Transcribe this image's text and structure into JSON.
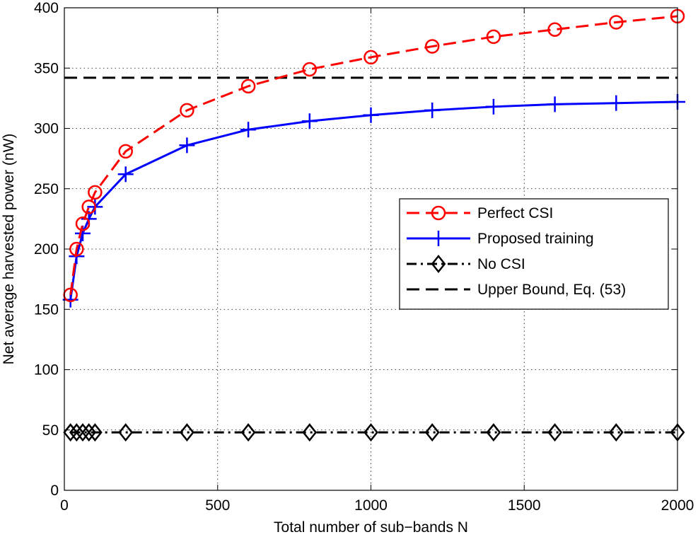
{
  "chart_data": {
    "type": "line",
    "title": "",
    "xlabel": "Total number of sub−bands N",
    "ylabel": "Net average harvested power (nW)",
    "xlim": [
      0,
      2000
    ],
    "ylim": [
      0,
      400
    ],
    "xticks": [
      0,
      500,
      1000,
      1500,
      2000
    ],
    "yticks": [
      0,
      50,
      100,
      150,
      200,
      250,
      300,
      350,
      400
    ],
    "grid": true,
    "legend_position": "center-right",
    "series": [
      {
        "name": "Perfect CSI",
        "color": "#ff0000",
        "line_style": "dashed",
        "marker": "circle",
        "x": [
          20,
          40,
          60,
          80,
          100,
          200,
          400,
          600,
          800,
          1000,
          1200,
          1400,
          1600,
          1800,
          2000
        ],
        "y": [
          162,
          200,
          221,
          235,
          247,
          281,
          315,
          335,
          349,
          359,
          368,
          376,
          382,
          388,
          393
        ]
      },
      {
        "name": "Proposed training",
        "color": "#0000ff",
        "line_style": "solid",
        "marker": "plus",
        "x": [
          20,
          40,
          60,
          80,
          100,
          200,
          400,
          600,
          800,
          1000,
          1200,
          1400,
          1600,
          1800,
          2000
        ],
        "y": [
          158,
          194,
          213,
          225,
          235,
          262,
          286,
          299,
          306,
          311,
          315,
          318,
          320,
          321,
          322
        ]
      },
      {
        "name": "No CSI",
        "color": "#000000",
        "line_style": "dash-dot",
        "marker": "diamond",
        "x": [
          20,
          40,
          60,
          80,
          100,
          200,
          400,
          600,
          800,
          1000,
          1200,
          1400,
          1600,
          1800,
          2000
        ],
        "y": [
          48,
          48,
          48,
          48,
          48,
          48,
          48,
          48,
          48,
          48,
          48,
          48,
          48,
          48,
          48
        ]
      },
      {
        "name": "Upper Bound, Eq. (53)",
        "color": "#000000",
        "line_style": "dashed",
        "marker": "none",
        "x": [
          0,
          2000
        ],
        "y": [
          342,
          342
        ]
      }
    ]
  }
}
